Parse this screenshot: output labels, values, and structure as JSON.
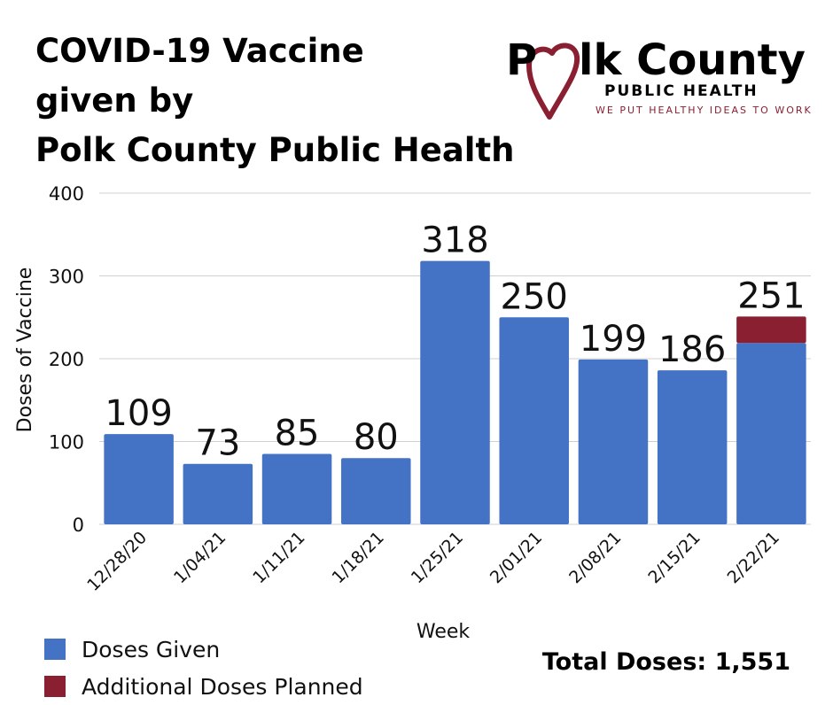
{
  "title_lines": [
    "COVID-19 Vaccine",
    "given by",
    "Polk County Public Health"
  ],
  "logo": {
    "name_part1": "P",
    "name_part2": "lk County",
    "subtitle": "PUBLIC HEALTH",
    "tagline": "WE PUT HEALTHY IDEAS TO WORK",
    "heart_color": "#8b1f32"
  },
  "colors": {
    "given": "#4472c4",
    "planned": "#8b1f32",
    "grid": "#d0d0d0"
  },
  "chart_data": {
    "type": "bar",
    "stacked": true,
    "categories": [
      "12/28/20",
      "1/04/21",
      "1/11/21",
      "1/18/21",
      "1/25/21",
      "2/01/21",
      "2/08/21",
      "2/15/21",
      "2/22/21"
    ],
    "series": [
      {
        "name": "Doses Given",
        "values": [
          109,
          73,
          85,
          80,
          318,
          250,
          199,
          186,
          219
        ]
      },
      {
        "name": "Additional Doses Planned",
        "values": [
          0,
          0,
          0,
          0,
          0,
          0,
          0,
          0,
          32
        ]
      }
    ],
    "data_labels": [
      "109",
      "73",
      "85",
      "80",
      "318",
      "250",
      "199",
      "186",
      "251"
    ],
    "xlabel": "Week",
    "ylabel": "Doses of Vaccine",
    "ylim": [
      0,
      400
    ],
    "yticks": [
      0,
      100,
      200,
      300,
      400
    ],
    "grid": true,
    "legend_position": "bottom-left"
  },
  "total_text": "Total Doses: 1,551"
}
